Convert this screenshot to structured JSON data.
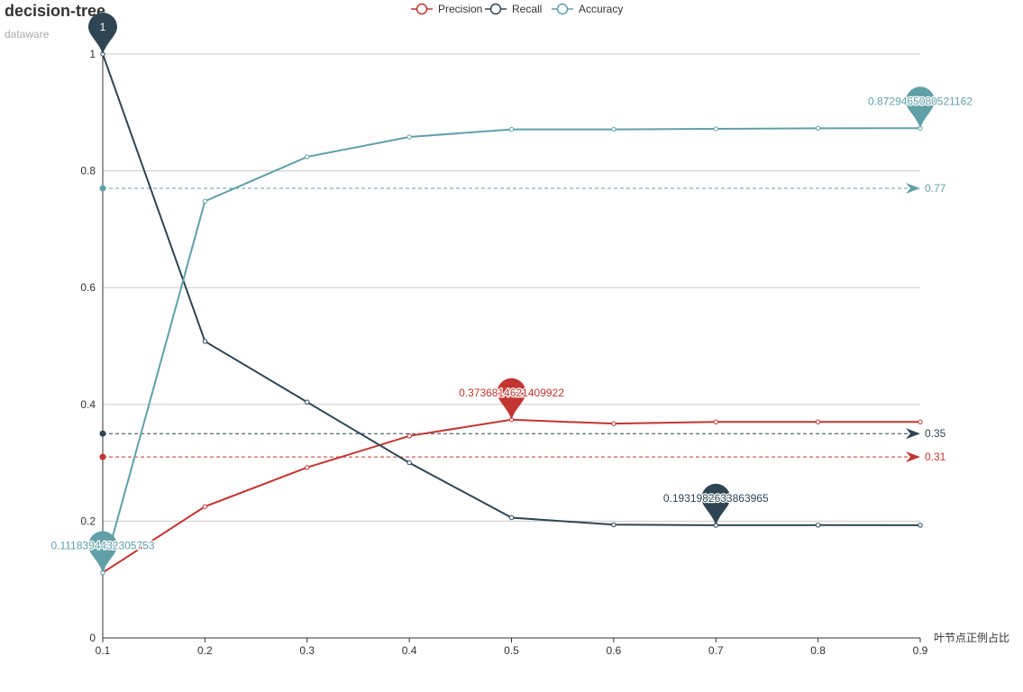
{
  "chart_data": {
    "type": "line",
    "title": "decision-tree",
    "subtitle": "dataware",
    "xlabel": "叶节点正例占比",
    "ylabel": "",
    "x": [
      "0.1",
      "0.2",
      "0.3",
      "0.4",
      "0.5",
      "0.6",
      "0.7",
      "0.8",
      "0.9"
    ],
    "xlim": [
      0.1,
      0.9
    ],
    "ylim": [
      0,
      1
    ],
    "yticks": [
      "0",
      "0.2",
      "0.4",
      "0.6",
      "0.8",
      "1"
    ],
    "grid": "horizontal",
    "legend_position": "top-center",
    "series": [
      {
        "name": "Precision",
        "color": "#c23531",
        "values": [
          0.1118,
          0.225,
          0.292,
          0.346,
          0.3738,
          0.367,
          0.37,
          0.37,
          0.37
        ],
        "max_label": "0.3736814621409922",
        "min_label": "",
        "average_label": "0.31",
        "average": 0.31
      },
      {
        "name": "Recall",
        "color": "#2f4554",
        "values": [
          1.0,
          0.508,
          0.404,
          0.3,
          0.206,
          0.194,
          0.193,
          0.1932,
          0.193
        ],
        "max_label": "1",
        "min_label": "0.1931982633863965",
        "average_label": "0.35",
        "average": 0.35
      },
      {
        "name": "Accuracy",
        "color": "#61a0a8",
        "values": [
          0.1118,
          0.748,
          0.824,
          0.858,
          0.871,
          0.871,
          0.872,
          0.8729,
          0.873
        ],
        "max_label": "0.8729465080521162",
        "min_label": "0.1118394432305753",
        "average_label": "0.77",
        "average": 0.77
      }
    ]
  }
}
